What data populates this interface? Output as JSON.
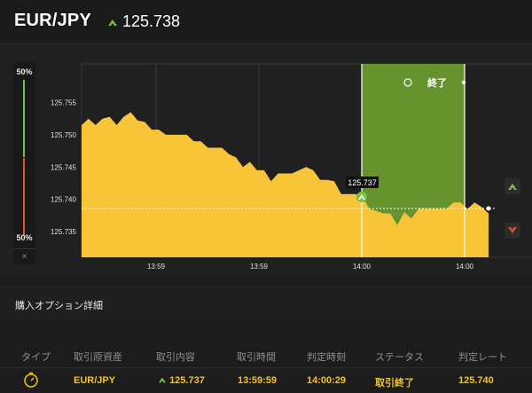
{
  "header": {
    "pair": "EUR/JPY",
    "rate": "125.738",
    "direction_icon": "up-arrow-icon",
    "up_color": "#7bc043"
  },
  "gauge": {
    "top_pct": "50%",
    "bottom_pct": "50%",
    "close": "×",
    "up_color": "#7bc043",
    "down_color": "#e2522f"
  },
  "chart": {
    "yticks": [
      "125.755",
      "125.750",
      "125.745",
      "125.740",
      "125.735"
    ],
    "xticks": [
      "13:59",
      "13:59",
      "14:00",
      "14:00"
    ],
    "entry_label": "125.737",
    "end_label": "終了",
    "end_icon": "stopwatch-icon",
    "buy_up_icon": "up-arrow-icon",
    "buy_down_icon": "down-arrow-icon",
    "area_color": "#f8c438",
    "end_zone_color": "#6c9a30"
  },
  "section": {
    "title": "購入オプション詳細"
  },
  "table": {
    "columns": [
      "タイプ",
      "取引原資産",
      "取引内容",
      "取引時間",
      "判定時刻",
      "ステータス",
      "判定レート"
    ],
    "row": {
      "type_icon": "stopwatch-icon",
      "asset": "EUR/JPY",
      "content": "125.737",
      "trade_time": "13:59:59",
      "judge_time": "14:00:29",
      "status": "取引終了",
      "judge_rate": "125.740"
    }
  },
  "chart_data": {
    "type": "area",
    "title": "",
    "ylabel": "",
    "xlabel": "",
    "ylim": [
      125.731,
      125.761
    ],
    "x_tick_labels": [
      "13:59",
      "13:59",
      "14:00",
      "14:00"
    ],
    "series": [
      {
        "values": [
          125.7515,
          125.7525,
          125.7515,
          125.7525,
          125.7528,
          125.7515,
          125.7528,
          125.7535,
          125.7522,
          125.752,
          125.7508,
          125.7508,
          125.75,
          125.75,
          125.75,
          125.75,
          125.749,
          125.749,
          125.748,
          125.748,
          125.748,
          125.747,
          125.7465,
          125.745,
          125.7458,
          125.7445,
          125.7445,
          125.7428,
          125.744,
          125.744,
          125.744,
          125.7445,
          125.745,
          125.7445,
          125.743,
          125.743,
          125.7428,
          125.7408,
          125.7408,
          125.7408,
          125.7405,
          125.7385,
          125.7382,
          125.7378,
          125.7378,
          125.736,
          125.738,
          125.737,
          125.7385,
          125.7385,
          125.7385,
          125.7385,
          125.7385,
          125.7395,
          125.7395,
          125.7385,
          125.7395,
          125.7388,
          125.7378
        ]
      }
    ],
    "entry_rate": 125.737,
    "current_rate": 125.738
  }
}
